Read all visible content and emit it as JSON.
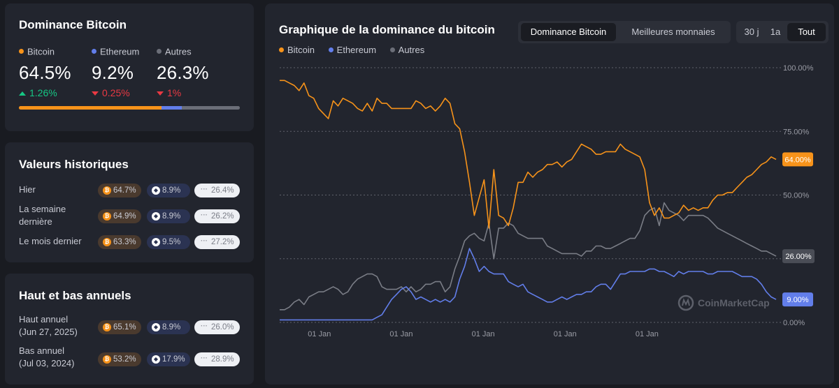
{
  "dominance": {
    "title": "Dominance Bitcoin",
    "items": [
      {
        "name": "Bitcoin",
        "value": "64.5%",
        "change": "1.26%",
        "dir": "up",
        "color": "#f7931a"
      },
      {
        "name": "Ethereum",
        "value": "9.2%",
        "change": "0.25%",
        "dir": "down",
        "color": "#627eea"
      },
      {
        "name": "Autres",
        "value": "26.3%",
        "change": "1%",
        "dir": "down",
        "color": "#6b6e78"
      }
    ],
    "bar_fractions": [
      0.645,
      0.092,
      0.263
    ]
  },
  "historical": {
    "title": "Valeurs historiques",
    "rows": [
      {
        "label": "Hier",
        "btc": "64.7%",
        "eth": "8.9%",
        "oth": "26.4%"
      },
      {
        "label": "La semaine dernière",
        "btc": "64.9%",
        "eth": "8.9%",
        "oth": "26.2%"
      },
      {
        "label": "Le mois dernier",
        "btc": "63.3%",
        "eth": "9.5%",
        "oth": "27.2%"
      }
    ]
  },
  "yearly": {
    "title": "Haut et bas annuels",
    "rows": [
      {
        "label": "Haut annuel",
        "sub": "(Jun 27, 2025)",
        "btc": "65.1%",
        "eth": "8.9%",
        "oth": "26.0%"
      },
      {
        "label": "Bas annuel",
        "sub": "(Jul 03, 2024)",
        "btc": "53.2%",
        "eth": "17.9%",
        "oth": "28.9%"
      }
    ]
  },
  "chart_panel": {
    "title": "Graphique de la dominance du bitcoin",
    "tabs": [
      "Dominance Bitcoin",
      "Meilleures monnaies"
    ],
    "ranges": [
      "30 j",
      "1a",
      "Tout"
    ],
    "watermark": "CoinMarketCap"
  },
  "chart_data": {
    "type": "line",
    "title": "Graphique de la dominance du bitcoin",
    "ylim": [
      0,
      100
    ],
    "y_ticks": [
      0,
      25,
      50,
      75,
      100
    ],
    "y_tick_labels": [
      "0.00%",
      "25.00%",
      "50.00%",
      "75.00%",
      "100.00%"
    ],
    "x_range": [
      0,
      100
    ],
    "x_ticks": [
      8,
      24.5,
      41,
      57.5,
      74
    ],
    "x_tick_labels": [
      "01 Jan",
      "01 Jan",
      "01 Jan",
      "01 Jan",
      "01 Jan"
    ],
    "series": [
      {
        "name": "Bitcoin",
        "color": "#f7931a",
        "end_label": "64.00%",
        "values": [
          95,
          95,
          94,
          93,
          91,
          94,
          89,
          88,
          84,
          82,
          80,
          87,
          85,
          88,
          87,
          86,
          84,
          83,
          86,
          83,
          88,
          86,
          86,
          84,
          84,
          84,
          84,
          84,
          87,
          86,
          84,
          85,
          83,
          85,
          88,
          86,
          78,
          76,
          67,
          55,
          42,
          49,
          56,
          37,
          60,
          42,
          41,
          38,
          45,
          55,
          55,
          59,
          57,
          59,
          60,
          62,
          62,
          63,
          61,
          63,
          64,
          67,
          70,
          69,
          68,
          66,
          66,
          67,
          67,
          67,
          70,
          68,
          67,
          66,
          65,
          60,
          47,
          42,
          45,
          41,
          41,
          42,
          43,
          46,
          44,
          45,
          44,
          45,
          45,
          48,
          50,
          50,
          51,
          51,
          53,
          55,
          57,
          58,
          60,
          62,
          63,
          65,
          64
        ]
      },
      {
        "name": "Ethereum",
        "color": "#627eea",
        "end_label": "9.00%",
        "values": [
          1,
          1,
          1,
          1,
          1,
          1,
          1,
          1,
          1,
          1,
          1,
          1,
          1,
          1,
          1,
          1,
          1,
          1,
          1,
          1,
          2,
          3,
          6,
          9,
          11,
          13,
          14,
          12,
          9,
          10,
          9,
          8,
          9,
          8,
          9,
          8,
          10,
          17,
          22,
          29,
          25,
          20,
          22,
          20,
          19,
          19,
          19,
          16,
          15,
          14,
          15,
          12,
          11,
          10,
          9,
          8,
          8,
          9,
          10,
          9,
          10,
          11,
          11,
          12,
          12,
          14,
          15,
          15,
          13,
          16,
          19,
          19,
          20,
          20,
          20,
          20,
          21,
          21,
          20,
          20,
          19,
          18,
          20,
          19,
          20,
          20,
          20,
          20,
          19,
          19,
          20,
          20,
          20,
          20,
          19,
          18,
          18,
          18,
          17,
          15,
          12,
          10,
          9
        ]
      },
      {
        "name": "Autres",
        "color": "#7a7d86",
        "end_label": "26.00%",
        "values": [
          5,
          5,
          6,
          8,
          9,
          7,
          10,
          11,
          12,
          12,
          13,
          14,
          13,
          11,
          12,
          15,
          17,
          18,
          19,
          19,
          18,
          14,
          13,
          13,
          13,
          14,
          12,
          14,
          12,
          13,
          15,
          15,
          16,
          16,
          12,
          14,
          21,
          26,
          32,
          34,
          35,
          33,
          32,
          39,
          25,
          37,
          37,
          39,
          38,
          35,
          34,
          33,
          33,
          33,
          33,
          30,
          29,
          28,
          27,
          27,
          27,
          27,
          26,
          28,
          28,
          30,
          30,
          29,
          29,
          30,
          31,
          32,
          33,
          33,
          36,
          42,
          44,
          45,
          38,
          47,
          44,
          43,
          42,
          40,
          42,
          42,
          42,
          42,
          41,
          39,
          37,
          36,
          35,
          34,
          33,
          32,
          31,
          30,
          29,
          28,
          28,
          27,
          26
        ]
      }
    ]
  }
}
